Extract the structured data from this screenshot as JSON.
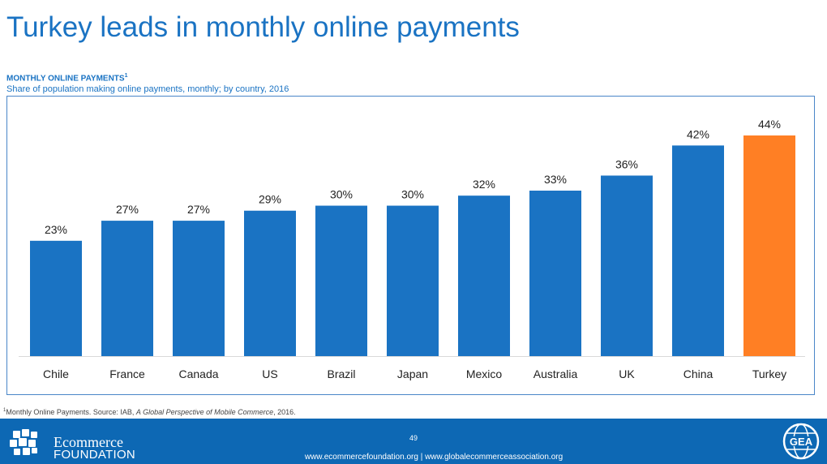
{
  "title": "Turkey leads in monthly online payments",
  "chart_heading": "MONTHLY ONLINE PAYMENTS",
  "chart_heading_sup": "1",
  "chart_subtitle": "Share of population making online payments, monthly; by country, 2016",
  "footnote": {
    "sup": "1",
    "pre": "Monthly Online Payments. Source: IAB, ",
    "italic": "A Global Perspective of Mobile Commerce",
    "post": ", 2016."
  },
  "footer": {
    "logo_line1": "Ecommerce",
    "logo_line2": "FOUNDATION",
    "page_number": "49",
    "links": "www.ecommercefoundation.org  |  www.globalecommerceassociation.org",
    "gea_label": "GEA"
  },
  "colors": {
    "bar": "#1a73c3",
    "highlight": "#ff7f24",
    "title": "#1a73c3",
    "footer": "#0d68b4"
  },
  "chart_data": {
    "type": "bar",
    "title": "",
    "xlabel": "",
    "ylabel": "",
    "categories": [
      "Chile",
      "France",
      "Canada",
      "US",
      "Brazil",
      "Japan",
      "Mexico",
      "Australia",
      "UK",
      "China",
      "Turkey"
    ],
    "values": [
      23,
      27,
      27,
      29,
      30,
      30,
      32,
      33,
      36,
      42,
      44
    ],
    "value_labels": [
      "23%",
      "27%",
      "27%",
      "29%",
      "30%",
      "30%",
      "32%",
      "33%",
      "36%",
      "42%",
      "44%"
    ],
    "highlight_category": "Turkey",
    "ylim": [
      0,
      44
    ],
    "grid": false,
    "legend": "none"
  }
}
